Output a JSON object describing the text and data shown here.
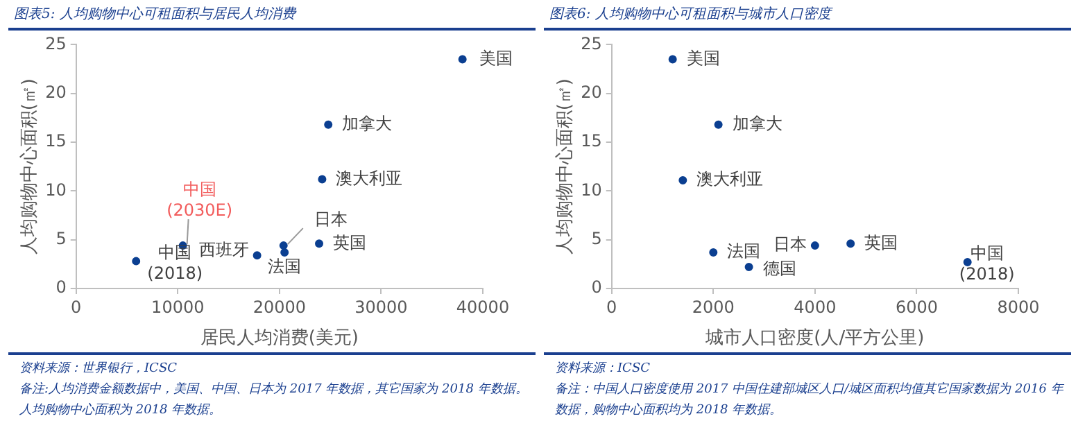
{
  "chart_data": [
    {
      "type": "scatter",
      "title": "图表5:  人均购物中心可租面积与居民人均消费",
      "xlabel": "居民人均消费(美元)",
      "ylabel": "人均购物中心面积(㎡)",
      "xlim": [
        0,
        40000
      ],
      "xticks": [
        0,
        10000,
        20000,
        30000,
        40000
      ],
      "ylim": [
        0,
        25
      ],
      "yticks": [
        0,
        5,
        10,
        15,
        20,
        25
      ],
      "grid": false,
      "legend": false,
      "marker": "circle",
      "series": [
        {
          "name": "美国",
          "color": "#0b3f91",
          "x": [
            38000
          ],
          "values": [
            23.5
          ]
        },
        {
          "name": "加拿大",
          "color": "#0b3f91",
          "x": [
            24800
          ],
          "values": [
            16.8
          ]
        },
        {
          "name": "澳大利亚",
          "color": "#0b3f91",
          "x": [
            24200
          ],
          "values": [
            11.2
          ]
        },
        {
          "name": "英国",
          "color": "#0b3f91",
          "x": [
            23900
          ],
          "values": [
            4.6
          ]
        },
        {
          "name": "日本",
          "color": "#0b3f91",
          "x": [
            20400
          ],
          "values": [
            4.4
          ]
        },
        {
          "name": "法国",
          "color": "#0b3f91",
          "x": [
            20500
          ],
          "values": [
            3.7
          ]
        },
        {
          "name": "西班牙",
          "color": "#0b3f91",
          "x": [
            17800
          ],
          "values": [
            3.4
          ]
        },
        {
          "name": "中国\n(2030E)",
          "color": "#0b3f91",
          "x": [
            10500
          ],
          "values": [
            4.4
          ]
        },
        {
          "name": "中国\n(2018)",
          "color": "#0b3f91",
          "x": [
            5900
          ],
          "values": [
            2.8
          ]
        }
      ],
      "annotations": [
        "资料来源：世界银行，ICSC",
        "备注:人均消费金额数据中，美国、中国、日本为 2017 年数据，其它国家为 2018 年数据。人均购物中心面积为 2018 年数据。"
      ]
    },
    {
      "type": "scatter",
      "title": "图表6:  人均购物中心可租面积与城市人口密度",
      "xlabel": "城市人口密度(人/平方公里)",
      "ylabel": "人均购物中心面积(㎡)",
      "xlim": [
        0,
        8000
      ],
      "xticks": [
        0,
        2000,
        4000,
        6000,
        8000
      ],
      "ylim": [
        0,
        25
      ],
      "yticks": [
        0,
        5,
        10,
        15,
        20,
        25
      ],
      "grid": false,
      "legend": false,
      "marker": "circle",
      "series": [
        {
          "name": "美国",
          "color": "#0b3f91",
          "x": [
            1200
          ],
          "values": [
            23.5
          ]
        },
        {
          "name": "加拿大",
          "color": "#0b3f91",
          "x": [
            2100
          ],
          "values": [
            16.8
          ]
        },
        {
          "name": "澳大利亚",
          "color": "#0b3f91",
          "x": [
            1400
          ],
          "values": [
            11.1
          ]
        },
        {
          "name": "法国",
          "color": "#0b3f91",
          "x": [
            2000
          ],
          "values": [
            3.7
          ]
        },
        {
          "name": "德国",
          "color": "#0b3f91",
          "x": [
            2700
          ],
          "values": [
            2.2
          ]
        },
        {
          "name": "日本",
          "color": "#0b3f91",
          "x": [
            4000
          ],
          "values": [
            4.4
          ]
        },
        {
          "name": "英国",
          "color": "#0b3f91",
          "x": [
            4700
          ],
          "values": [
            4.6
          ]
        },
        {
          "name": "中国\n(2018)",
          "color": "#0b3f91",
          "x": [
            7000
          ],
          "values": [
            2.7
          ]
        }
      ],
      "annotations": [
        "资料来源：ICSC",
        "备注：中国人口密度使用 2017 中国住建部城区人口/城区面积均值其它国家数据为 2016 年数据，购物中心面积均为 2018 年数据。"
      ]
    }
  ]
}
